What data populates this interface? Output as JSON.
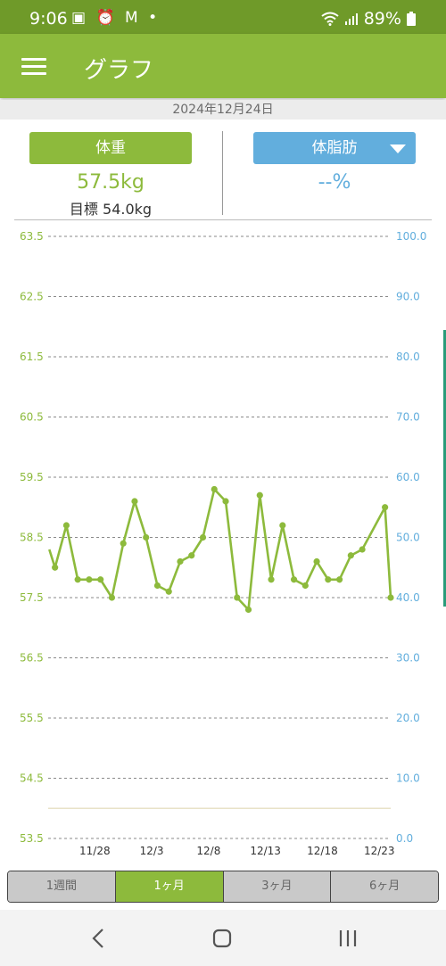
{
  "status_bar": {
    "time": "9:06",
    "notification_icons": [
      "image-icon",
      "alarm-icon",
      "gmail-icon",
      "dot-icon"
    ],
    "battery": "89%"
  },
  "app_bar": {
    "title": "グラフ"
  },
  "date": "2024年12月24日",
  "weight_panel": {
    "label": "体重",
    "value": "57.5kg",
    "goal": "目標 54.0kg"
  },
  "fat_panel": {
    "label": "体脂肪",
    "value": "--%"
  },
  "colors": {
    "green": "#8dba3c",
    "blue": "#62aedd",
    "dark_green": "#6f9a29"
  },
  "chart_data": {
    "type": "line",
    "title": "",
    "y_left_ticks": [
      "63.5",
      "62.5",
      "61.5",
      "60.5",
      "59.5",
      "58.5",
      "57.5",
      "56.5",
      "55.5",
      "54.5",
      "53.5"
    ],
    "y_right_ticks": [
      "100.0",
      "90.0",
      "80.0",
      "70.0",
      "60.0",
      "50.0",
      "40.0",
      "30.0",
      "20.0",
      "10.0",
      "0.0"
    ],
    "ylim_left": [
      53.5,
      63.5
    ],
    "ylim_right": [
      0,
      100
    ],
    "x_ticks": [
      {
        "label": "11/28",
        "day": 4
      },
      {
        "label": "12/3",
        "day": 9
      },
      {
        "label": "12/8",
        "day": 14
      },
      {
        "label": "12/13",
        "day": 19
      },
      {
        "label": "12/18",
        "day": 24
      },
      {
        "label": "12/23",
        "day": 29
      }
    ],
    "xlim_day": [
      -0.1,
      30
    ],
    "goal_line": 54.0,
    "series": [
      {
        "values": [
          {
            "day": 0,
            "y": 58.3
          },
          {
            "day": 0.5,
            "y": 58.0
          },
          {
            "day": 1.5,
            "y": 58.7
          },
          {
            "day": 2.5,
            "y": 57.8
          },
          {
            "day": 3.5,
            "y": 57.8
          },
          {
            "day": 4.5,
            "y": 57.8
          },
          {
            "day": 5.5,
            "y": 57.5
          },
          {
            "day": 6.5,
            "y": 58.4
          },
          {
            "day": 7.5,
            "y": 59.1
          },
          {
            "day": 8.5,
            "y": 58.5
          },
          {
            "day": 9.5,
            "y": 57.7
          },
          {
            "day": 10.5,
            "y": 57.6
          },
          {
            "day": 11.5,
            "y": 58.1
          },
          {
            "day": 12.5,
            "y": 58.2
          },
          {
            "day": 13.5,
            "y": 58.5
          },
          {
            "day": 14.5,
            "y": 59.3
          },
          {
            "day": 15.5,
            "y": 59.1
          },
          {
            "day": 16.5,
            "y": 57.5
          },
          {
            "day": 17.5,
            "y": 57.3
          },
          {
            "day": 18.5,
            "y": 59.2
          },
          {
            "day": 19.5,
            "y": 57.8
          },
          {
            "day": 20.5,
            "y": 58.7
          },
          {
            "day": 21.5,
            "y": 57.8
          },
          {
            "day": 22.5,
            "y": 57.7
          },
          {
            "day": 23.5,
            "y": 58.1
          },
          {
            "day": 24.5,
            "y": 57.8
          },
          {
            "day": 25.5,
            "y": 57.8
          },
          {
            "day": 26.5,
            "y": 58.2
          },
          {
            "day": 27.5,
            "y": 58.3
          },
          {
            "day": 29.5,
            "y": 59.0
          },
          {
            "day": 30.5,
            "y": 57.5
          }
        ]
      }
    ]
  },
  "period_tabs": [
    {
      "label": "1週間",
      "active": false
    },
    {
      "label": "1ヶ月",
      "active": true
    },
    {
      "label": "3ヶ月",
      "active": false
    },
    {
      "label": "6ヶ月",
      "active": false
    }
  ]
}
